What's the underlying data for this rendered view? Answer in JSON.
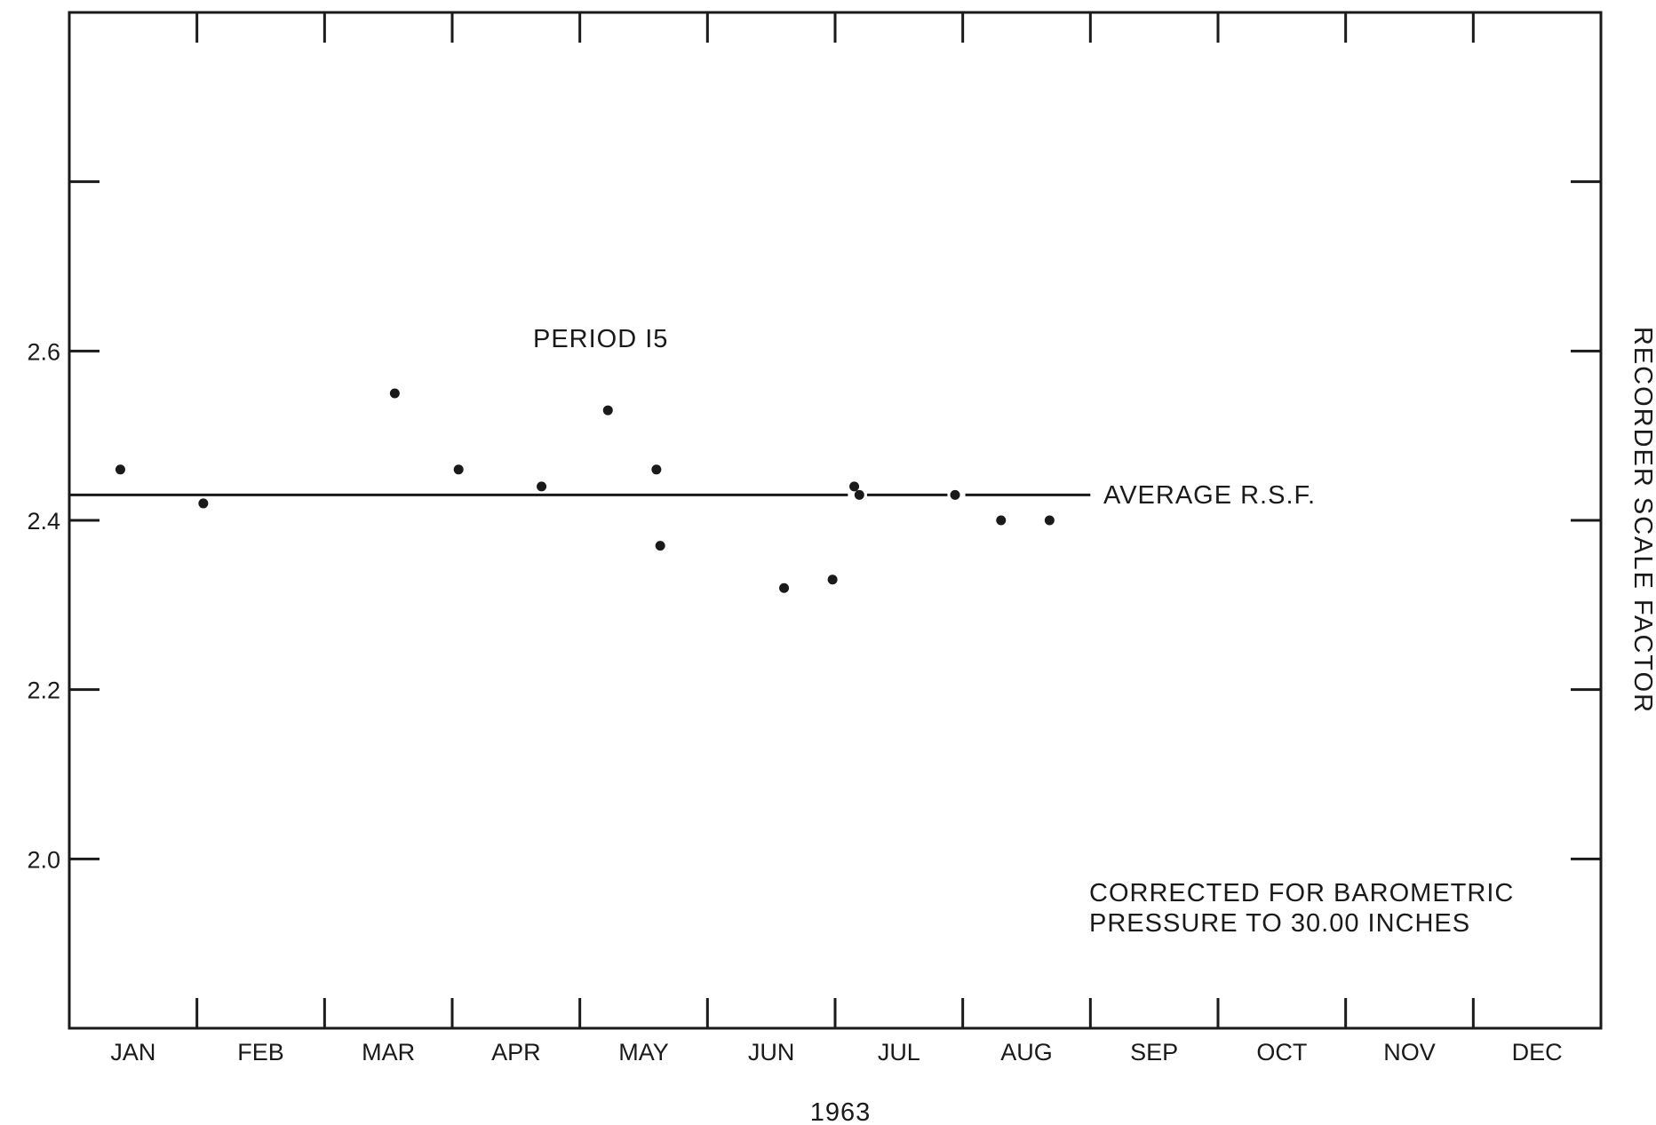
{
  "chart_data": {
    "type": "scatter",
    "title": "",
    "xlabel": "1963",
    "ylabel": "RECORDER SCALE FACTOR",
    "x_categories": [
      "JAN",
      "FEB",
      "MAR",
      "APR",
      "MAY",
      "JUN",
      "JUL",
      "AUG",
      "SEP",
      "OCT",
      "NOV",
      "DEC"
    ],
    "x_range_months": [
      0,
      12
    ],
    "ylim": [
      1.8,
      3.0
    ],
    "y_ticks": [
      {
        "value": 2.0,
        "label": "2.0"
      },
      {
        "value": 2.2,
        "label": "2.2"
      },
      {
        "value": 2.4,
        "label": "2.4"
      },
      {
        "value": 2.6,
        "label": "2.6"
      },
      {
        "value": 2.8,
        "label": ""
      }
    ],
    "grid": false,
    "points": [
      {
        "x": 0.4,
        "y": 2.46
      },
      {
        "x": 1.05,
        "y": 2.42
      },
      {
        "x": 2.55,
        "y": 2.55
      },
      {
        "x": 3.05,
        "y": 2.46
      },
      {
        "x": 3.7,
        "y": 2.44
      },
      {
        "x": 4.22,
        "y": 2.53
      },
      {
        "x": 4.6,
        "y": 2.46
      },
      {
        "x": 4.63,
        "y": 2.37
      },
      {
        "x": 5.6,
        "y": 2.32
      },
      {
        "x": 5.98,
        "y": 2.33
      },
      {
        "x": 6.15,
        "y": 2.44
      },
      {
        "x": 6.19,
        "y": 2.43
      },
      {
        "x": 6.94,
        "y": 2.43
      },
      {
        "x": 7.3,
        "y": 2.4
      },
      {
        "x": 7.68,
        "y": 2.4
      }
    ],
    "average_line": {
      "value": 2.43,
      "label": "AVERAGE  R.S.F.",
      "segments": [
        [
          0,
          6.1
        ],
        [
          6.25,
          6.88
        ],
        [
          7.02,
          8.0
        ]
      ]
    },
    "annotations": {
      "period": "PERIOD  I5",
      "note_line1": "CORRECTED  FOR  BAROMETRIC",
      "note_line2": "PRESSURE  TO  30.00  INCHES"
    }
  }
}
